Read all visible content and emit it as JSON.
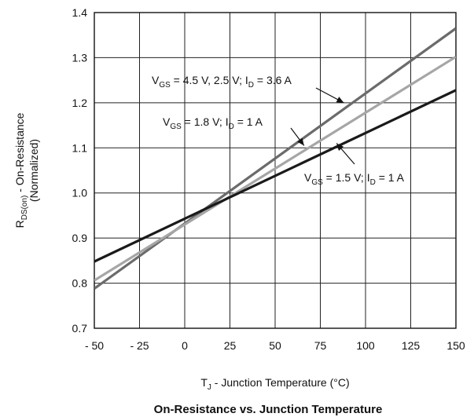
{
  "chart_data": {
    "type": "line",
    "title": "On-Resistance vs. Junction Temperature",
    "xlabel": {
      "main": "T",
      "sub": "J",
      "rest": " - Junction Temperature (°C)"
    },
    "ylabel": {
      "line1": {
        "main": "R",
        "sub": "DS(on)",
        "rest": " - On-Resistance"
      },
      "line2": "(Normalized)"
    },
    "xlim": [
      -50,
      150
    ],
    "ylim": [
      0.7,
      1.4
    ],
    "x_ticks": [
      -50,
      -25,
      0,
      25,
      50,
      75,
      100,
      125,
      150
    ],
    "x_tick_labels": [
      "- 50",
      "- 25",
      "0",
      "25",
      "50",
      "75",
      "100",
      "125",
      "150"
    ],
    "y_ticks": [
      0.7,
      0.8,
      0.9,
      1.0,
      1.1,
      1.2,
      1.3,
      1.4
    ],
    "y_tick_labels": [
      "0.7",
      "0.8",
      "0.9",
      "1.0",
      "1.1",
      "1.2",
      "1.3",
      "1.4"
    ],
    "grid": true,
    "series": [
      {
        "name": "V_GS = 4.5 V, 2.5 V; I_D = 3.6 A",
        "x": [
          -50,
          150
        ],
        "y": [
          0.788,
          1.365
        ],
        "color": "#6b6b6b",
        "label_parts": [
          [
            "V",
            ""
          ],
          [
            "GS",
            "sub"
          ],
          [
            " = 4.5 V, 2.5 V; I",
            ""
          ],
          [
            "D",
            "sub"
          ],
          [
            " = 3.6 A",
            ""
          ]
        ],
        "arrow_to": [
          88,
          1.2
        ]
      },
      {
        "name": "V_GS = 1.8 V; I_D = 1 A",
        "x": [
          -50,
          150
        ],
        "y": [
          0.806,
          1.302
        ],
        "color": "#a6a6a6",
        "label_parts": [
          [
            "V",
            ""
          ],
          [
            "GS",
            "sub"
          ],
          [
            " = 1.8 V; I",
            ""
          ],
          [
            "D",
            "sub"
          ],
          [
            " = 1 A",
            ""
          ]
        ],
        "arrow_to": [
          66,
          1.105
        ]
      },
      {
        "name": "V_GS = 1.5 V; I_D = 1 A",
        "x": [
          -50,
          150
        ],
        "y": [
          0.848,
          1.228
        ],
        "color": "#1a1a1a",
        "label_parts": [
          [
            "V",
            ""
          ],
          [
            "GS",
            "sub"
          ],
          [
            " = 1.5 V; I",
            ""
          ],
          [
            "D",
            "sub"
          ],
          [
            " = 1 A",
            ""
          ]
        ],
        "arrow_to": [
          84,
          1.11
        ]
      }
    ]
  }
}
